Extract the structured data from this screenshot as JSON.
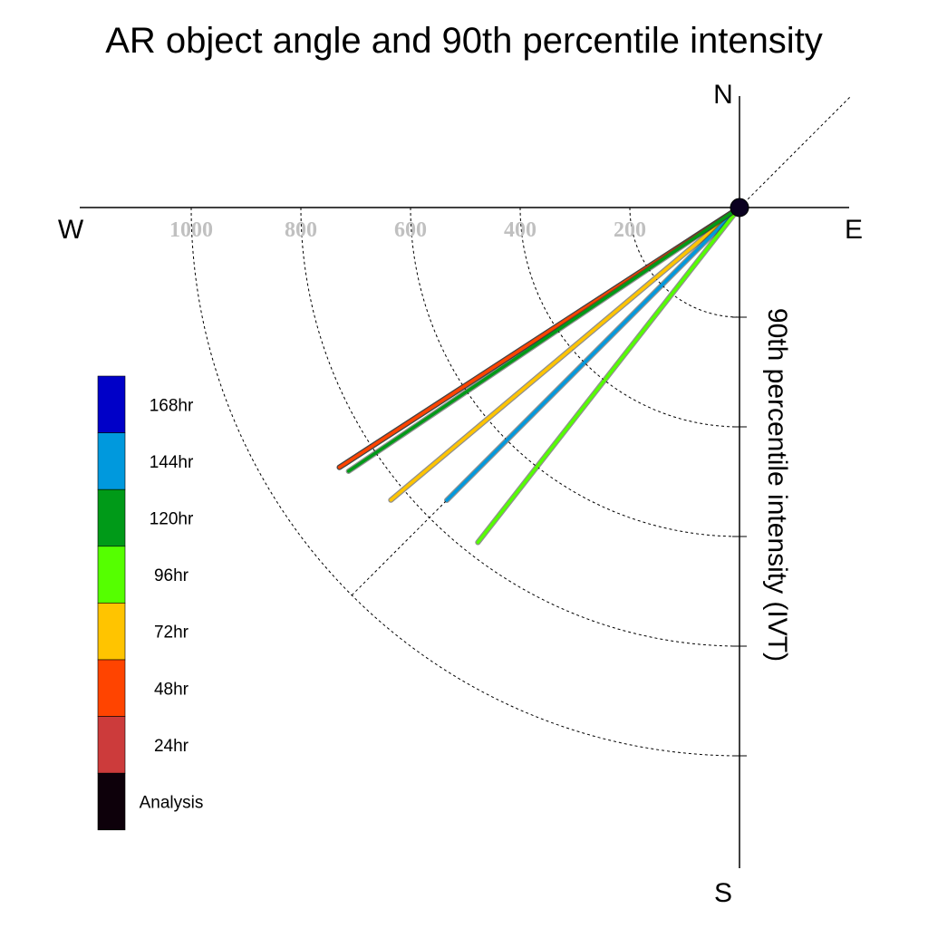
{
  "chart_data": {
    "type": "polar-vector",
    "title": "AR object angle and 90th percentile intensity",
    "ylabel": "90th percentile intensity (IVT)",
    "compass": {
      "north": "N",
      "south": "S",
      "east": "E",
      "west": "W"
    },
    "radial_ticks": [
      200,
      400,
      600,
      800,
      1000
    ],
    "rlim": [
      0,
      1200
    ],
    "reference_angle_deg": 225,
    "series": [
      {
        "name": "Analysis",
        "color": "#0d000a",
        "magnitude": 870,
        "angle_deg": 237
      },
      {
        "name": "24hr",
        "color": "#cc3b3b",
        "magnitude": 870,
        "angle_deg": 237
      },
      {
        "name": "48hr",
        "color": "#ff4400",
        "magnitude": 870,
        "angle_deg": 237
      },
      {
        "name": "72hr",
        "color": "#ffc400",
        "magnitude": 830,
        "angle_deg": 230
      },
      {
        "name": "96hr",
        "color": "#55ff00",
        "magnitude": 775,
        "angle_deg": 218
      },
      {
        "name": "120hr",
        "color": "#009a18",
        "magnitude": 860,
        "angle_deg": 236
      },
      {
        "name": "144hr",
        "color": "#0099dd",
        "magnitude": 755,
        "angle_deg": 225
      },
      {
        "name": "168hr",
        "color": "#0000c8",
        "magnitude": null,
        "angle_deg": null
      }
    ],
    "legend": {
      "placement": "left",
      "entries": [
        {
          "label": "168hr",
          "color": "#0000c8"
        },
        {
          "label": "144hr",
          "color": "#0099dd"
        },
        {
          "label": "120hr",
          "color": "#009a18"
        },
        {
          "label": "96hr",
          "color": "#55ff00"
        },
        {
          "label": "72hr",
          "color": "#ffc400"
        },
        {
          "label": "48hr",
          "color": "#ff4400"
        },
        {
          "label": "24hr",
          "color": "#cc3b3b"
        },
        {
          "label": "Analysis",
          "color": "#0d000a"
        }
      ]
    }
  }
}
